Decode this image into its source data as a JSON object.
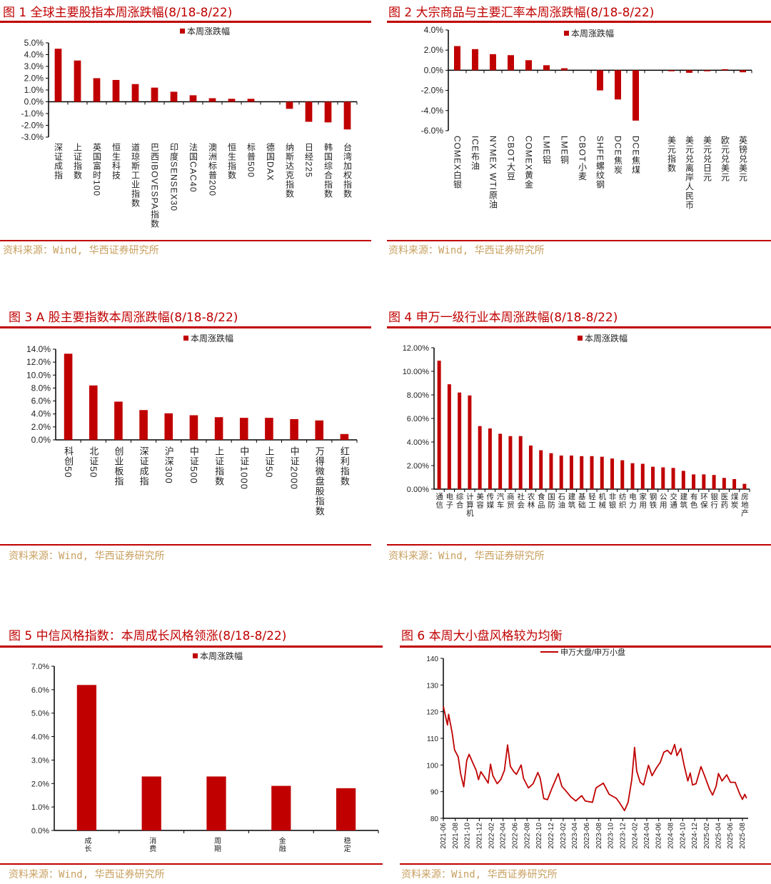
{
  "accent_color": "#c00000",
  "source_color": "#c8a060",
  "figures": [
    {
      "title": "图 1  全球主要股指本周涨跌幅(8/18-8/22)",
      "source": "资料来源：Wind, 华西证券研究所",
      "chart_data": {
        "type": "bar",
        "legend": "本周涨跌幅",
        "legend_position": "top-center",
        "categories": [
          "深证成指",
          "上证指数",
          "英国富时100",
          "恒生科技",
          "道琼斯工业指数",
          "巴西IBOVESPA指数",
          "印度SENSEX30",
          "法国CAC40",
          "澳洲标普200",
          "恒生指数",
          "标普500",
          "德国DAX",
          "纳斯达克指数",
          "日经225",
          "韩国综合指数",
          "台湾加权指数"
        ],
        "values": [
          4.5,
          3.5,
          2.0,
          1.85,
          1.5,
          1.2,
          0.85,
          0.55,
          0.3,
          0.25,
          0.25,
          0.0,
          -0.6,
          -1.7,
          -1.75,
          -2.35
        ],
        "unit": "%",
        "ylim": [
          -3,
          5
        ],
        "ytick_labels": [
          "5.0%",
          "4.0%",
          "3.0%",
          "2.0%",
          "1.0%",
          "0.0%",
          "-1.0%",
          "-2.0%",
          "-3.0%"
        ],
        "grid": false
      }
    },
    {
      "title": "图 2  大宗商品与主要汇率本周涨跌幅(8/18-8/22)",
      "source": "资料来源：Wind, 华西证券研究所",
      "chart_data": {
        "type": "bar",
        "legend": "本周涨跌幅",
        "legend_position": "top-center",
        "categories": [
          "COMEX白银",
          "ICE布油",
          "NYMEX WTI原油",
          "CBOT大豆",
          "COMEX黄金",
          "LME铝",
          "LME铜",
          "CBOT小麦",
          "SHFE螺纹钢",
          "DCE焦炭",
          "DCE焦煤",
          "",
          "美元指数",
          "美元兑离岸人民币",
          "美元兑日元",
          "欧元兑美元",
          "英镑兑美元"
        ],
        "values": [
          2.4,
          2.1,
          1.6,
          1.5,
          1.0,
          0.5,
          0.2,
          0.0,
          -2.0,
          -2.9,
          -5.0,
          null,
          -0.1,
          -0.25,
          -0.1,
          0.1,
          -0.2
        ],
        "unit": "%",
        "ylim": [
          -6,
          4
        ],
        "ytick_labels": [
          "4.0%",
          "2.0%",
          "0.0%",
          "-2.0%",
          "-4.0%",
          "-6.0%"
        ],
        "grid": false
      }
    },
    {
      "title": "图 3  A 股主要指数本周涨跌幅(8/18-8/22)",
      "source": "资料来源：Wind, 华西证券研究所",
      "chart_data": {
        "type": "bar",
        "legend": "本周涨跌幅",
        "legend_position": "top-center",
        "categories": [
          "科创50",
          "北证50",
          "创业板指",
          "深证成指",
          "沪深300",
          "中证500",
          "上证指数",
          "中证1000",
          "上证50",
          "中证2000",
          "万得微盘股指数",
          "红利指数"
        ],
        "values": [
          13.3,
          8.4,
          5.9,
          4.6,
          4.1,
          3.8,
          3.5,
          3.4,
          3.4,
          3.2,
          3.0,
          0.9
        ],
        "unit": "%",
        "ylim": [
          0,
          14
        ],
        "ytick_labels": [
          "14.0%",
          "12.0%",
          "10.0%",
          "8.0%",
          "6.0%",
          "4.0%",
          "2.0%",
          "0.0%"
        ],
        "grid": false
      }
    },
    {
      "title": "图 4  申万一级行业本周涨跌幅(8/18-8/22)",
      "source": "资料来源：Wind, 华西证券研究所",
      "chart_data": {
        "type": "bar",
        "legend": "本周涨跌幅",
        "legend_position": "top-center",
        "categories": [
          "通信",
          "电子",
          "综合",
          "计算机",
          "美容",
          "传媒",
          "汽车",
          "商贸",
          "社会",
          "农林",
          "食品",
          "国防",
          "石油",
          "建筑",
          "基础",
          "轻工",
          "机械",
          "非银",
          "纺织",
          "电力",
          "家用",
          "钢铁",
          "公用",
          "交通",
          "建筑",
          "有色",
          "环保",
          "银行",
          "医药",
          "煤炭",
          "房地产"
        ],
        "values": [
          10.9,
          8.9,
          8.2,
          7.95,
          5.35,
          5.15,
          4.7,
          4.5,
          4.5,
          3.7,
          3.3,
          3.05,
          2.85,
          2.85,
          2.8,
          2.8,
          2.75,
          2.6,
          2.45,
          2.2,
          2.15,
          1.9,
          1.85,
          1.8,
          1.55,
          1.25,
          1.25,
          1.2,
          0.95,
          0.85,
          0.45
        ],
        "unit": "%",
        "ylim": [
          0,
          12
        ],
        "ytick_labels": [
          "12.00%",
          "10.00%",
          "8.00%",
          "6.00%",
          "4.00%",
          "2.00%",
          "0.00%"
        ],
        "grid": false
      }
    },
    {
      "title": "图 5  中信风格指数：本周成长风格领涨(8/18-8/22)",
      "source": "资料来源：Wind, 华西证券研究所",
      "chart_data": {
        "type": "bar",
        "legend": "本周涨跌幅",
        "legend_position": "top-center",
        "categories": [
          "成长",
          "消费",
          "周期",
          "金融",
          "稳定"
        ],
        "values": [
          6.2,
          2.3,
          2.3,
          1.9,
          1.8
        ],
        "unit": "%",
        "ylim": [
          0,
          7
        ],
        "ytick_labels": [
          "7.0%",
          "6.0%",
          "5.0%",
          "4.0%",
          "3.0%",
          "2.0%",
          "1.0%",
          "0.0%"
        ],
        "grid": false
      }
    },
    {
      "title": "图 6  本周大小盘风格较为均衡",
      "source": "资料来源：Wind, 华西证券研究所",
      "chart_data": {
        "type": "line",
        "legend": "申万大盘/申万小盘",
        "legend_position": "top-center",
        "ylim": [
          80,
          140
        ],
        "ytick_labels": [
          "140",
          "130",
          "120",
          "110",
          "100",
          "90",
          "80"
        ],
        "xtick_labels": [
          "2021-06",
          "2021-08",
          "2021-10",
          "2021-12",
          "2022-02",
          "2022-04",
          "2022-06",
          "2022-08",
          "2022-10",
          "2022-12",
          "2023-02",
          "2023-04",
          "2023-06",
          "2023-08",
          "2023-10",
          "2023-12",
          "2024-02",
          "2024-04",
          "2024-06",
          "2024-08",
          "2024-10",
          "2024-12",
          "2025-02",
          "2025-04",
          "2025-06",
          "2025-08"
        ],
        "grid": false,
        "series": [
          {
            "name": "申万大盘/申万小盘",
            "points": [
              [
                "2021-06-01",
                122
              ],
              [
                "2021-06-22",
                115
              ],
              [
                "2021-06-28",
                119
              ],
              [
                "2021-07-16",
                112
              ],
              [
                "2021-07-28",
                105.7
              ],
              [
                "2021-08-16",
                103
              ],
              [
                "2021-08-28",
                96.8
              ],
              [
                "2021-09-13",
                91.8
              ],
              [
                "2021-09-28",
                101.7
              ],
              [
                "2021-10-10",
                104
              ],
              [
                "2021-10-28",
                101
              ],
              [
                "2021-11-15",
                98
              ],
              [
                "2021-11-27",
                94.5
              ],
              [
                "2021-12-09",
                97.5
              ],
              [
                "2021-12-27",
                95.5
              ],
              [
                "2022-01-15",
                93.2
              ],
              [
                "2022-01-27",
                100.3
              ],
              [
                "2022-02-08",
                96
              ],
              [
                "2022-03-02",
                93
              ],
              [
                "2022-03-20",
                94.5
              ],
              [
                "2022-04-08",
                98
              ],
              [
                "2022-04-24",
                107.5
              ],
              [
                "2022-05-08",
                99.5
              ],
              [
                "2022-05-26",
                97.5
              ],
              [
                "2022-06-08",
                96.5
              ],
              [
                "2022-07-02",
                100
              ],
              [
                "2022-07-14",
                95
              ],
              [
                "2022-08-08",
                91.4
              ],
              [
                "2022-09-01",
                93
              ],
              [
                "2022-09-25",
                97.2
              ],
              [
                "2022-10-07",
                95
              ],
              [
                "2022-10-25",
                87.4
              ],
              [
                "2022-11-13",
                87
              ],
              [
                "2022-12-07",
                91.5
              ],
              [
                "2023-01-07",
                96.8
              ],
              [
                "2023-01-25",
                92
              ],
              [
                "2023-02-12",
                90.5
              ],
              [
                "2023-03-12",
                88
              ],
              [
                "2023-04-06",
                86.5
              ],
              [
                "2023-05-06",
                88.5
              ],
              [
                "2023-05-24",
                86.5
              ],
              [
                "2023-06-30",
                86
              ],
              [
                "2023-07-18",
                91.4
              ],
              [
                "2023-08-24",
                93.2
              ],
              [
                "2023-09-23",
                89
              ],
              [
                "2023-10-29",
                87.5
              ],
              [
                "2023-11-17",
                85.6
              ],
              [
                "2023-12-10",
                82.9
              ],
              [
                "2023-12-28",
                86
              ],
              [
                "2024-01-16",
                94.5
              ],
              [
                "2024-01-30",
                106.6
              ],
              [
                "2024-02-10",
                97.7
              ],
              [
                "2024-02-28",
                93.5
              ],
              [
                "2024-03-16",
                92.5
              ],
              [
                "2024-04-10",
                99.9
              ],
              [
                "2024-04-28",
                96
              ],
              [
                "2024-05-21",
                99
              ],
              [
                "2024-06-09",
                101
              ],
              [
                "2024-06-27",
                104.8
              ],
              [
                "2024-07-15",
                105.5
              ],
              [
                "2024-08-03",
                104
              ],
              [
                "2024-08-21",
                107.7
              ],
              [
                "2024-09-02",
                103.5
              ],
              [
                "2024-09-21",
                106.2
              ],
              [
                "2024-10-08",
                100
              ],
              [
                "2024-10-27",
                94
              ],
              [
                "2024-11-08",
                97
              ],
              [
                "2024-11-20",
                92.5
              ],
              [
                "2024-12-08",
                93
              ],
              [
                "2025-01-02",
                99.4
              ],
              [
                "2025-01-20",
                96
              ],
              [
                "2025-02-14",
                91
              ],
              [
                "2025-03-02",
                88.7
              ],
              [
                "2025-03-20",
                92
              ],
              [
                "2025-04-01",
                96.8
              ],
              [
                "2025-04-19",
                94
              ],
              [
                "2025-05-13",
                96.3
              ],
              [
                "2025-06-01",
                93.5
              ],
              [
                "2025-06-25",
                93.5
              ],
              [
                "2025-07-19",
                89
              ],
              [
                "2025-08-01",
                87.1
              ],
              [
                "2025-08-13",
                89
              ],
              [
                "2025-08-22",
                87.5
              ]
            ]
          }
        ]
      }
    }
  ]
}
